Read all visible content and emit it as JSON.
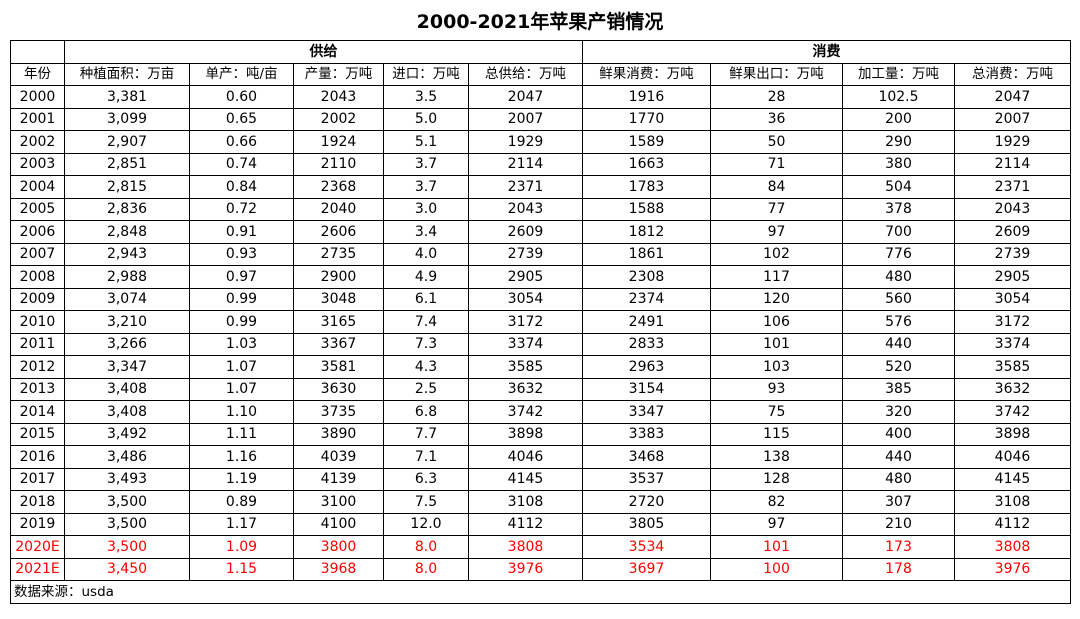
{
  "title": "2000-2021年苹果产销情况",
  "groups": {
    "supply": "供给",
    "consumption": "消费"
  },
  "headers": [
    "年份",
    "种植面积：万亩",
    "单产：吨/亩",
    "产量：万吨",
    "进口：万吨",
    "总供给：万吨",
    "鲜果消费：万吨",
    "鲜果出口：万吨",
    "加工量：万吨",
    "总消费：万吨"
  ],
  "rows": [
    [
      "2000",
      "3,381",
      "0.60",
      "2043",
      "3.5",
      "2047",
      "1916",
      "28",
      "102.5",
      "2047"
    ],
    [
      "2001",
      "3,099",
      "0.65",
      "2002",
      "5.0",
      "2007",
      "1770",
      "36",
      "200",
      "2007"
    ],
    [
      "2002",
      "2,907",
      "0.66",
      "1924",
      "5.1",
      "1929",
      "1589",
      "50",
      "290",
      "1929"
    ],
    [
      "2003",
      "2,851",
      "0.74",
      "2110",
      "3.7",
      "2114",
      "1663",
      "71",
      "380",
      "2114"
    ],
    [
      "2004",
      "2,815",
      "0.84",
      "2368",
      "3.7",
      "2371",
      "1783",
      "84",
      "504",
      "2371"
    ],
    [
      "2005",
      "2,836",
      "0.72",
      "2040",
      "3.0",
      "2043",
      "1588",
      "77",
      "378",
      "2043"
    ],
    [
      "2006",
      "2,848",
      "0.91",
      "2606",
      "3.4",
      "2609",
      "1812",
      "97",
      "700",
      "2609"
    ],
    [
      "2007",
      "2,943",
      "0.93",
      "2735",
      "4.0",
      "2739",
      "1861",
      "102",
      "776",
      "2739"
    ],
    [
      "2008",
      "2,988",
      "0.97",
      "2900",
      "4.9",
      "2905",
      "2308",
      "117",
      "480",
      "2905"
    ],
    [
      "2009",
      "3,074",
      "0.99",
      "3048",
      "6.1",
      "3054",
      "2374",
      "120",
      "560",
      "3054"
    ],
    [
      "2010",
      "3,210",
      "0.99",
      "3165",
      "7.4",
      "3172",
      "2491",
      "106",
      "576",
      "3172"
    ],
    [
      "2011",
      "3,266",
      "1.03",
      "3367",
      "7.3",
      "3374",
      "2833",
      "101",
      "440",
      "3374"
    ],
    [
      "2012",
      "3,347",
      "1.07",
      "3581",
      "4.3",
      "3585",
      "2963",
      "103",
      "520",
      "3585"
    ],
    [
      "2013",
      "3,408",
      "1.07",
      "3630",
      "2.5",
      "3632",
      "3154",
      "93",
      "385",
      "3632"
    ],
    [
      "2014",
      "3,408",
      "1.10",
      "3735",
      "6.8",
      "3742",
      "3347",
      "75",
      "320",
      "3742"
    ],
    [
      "2015",
      "3,492",
      "1.11",
      "3890",
      "7.7",
      "3898",
      "3383",
      "115",
      "400",
      "3898"
    ],
    [
      "2016",
      "3,486",
      "1.16",
      "4039",
      "7.1",
      "4046",
      "3468",
      "138",
      "440",
      "4046"
    ],
    [
      "2017",
      "3,493",
      "1.19",
      "4139",
      "6.3",
      "4145",
      "3537",
      "128",
      "480",
      "4145"
    ],
    [
      "2018",
      "3,500",
      "0.89",
      "3100",
      "7.5",
      "3108",
      "2720",
      "82",
      "307",
      "3108"
    ],
    [
      "2019",
      "3,500",
      "1.17",
      "4100",
      "12.0",
      "4112",
      "3805",
      "97",
      "210",
      "4112"
    ],
    [
      "2020E",
      "3,500",
      "1.09",
      "3800",
      "8.0",
      "3808",
      "3534",
      "101",
      "173",
      "3808"
    ],
    [
      "2021E",
      "3,450",
      "1.15",
      "3968",
      "8.0",
      "3976",
      "3697",
      "100",
      "178",
      "3976"
    ]
  ],
  "estimate_color": "#ff0000",
  "source": "数据来源：usda"
}
